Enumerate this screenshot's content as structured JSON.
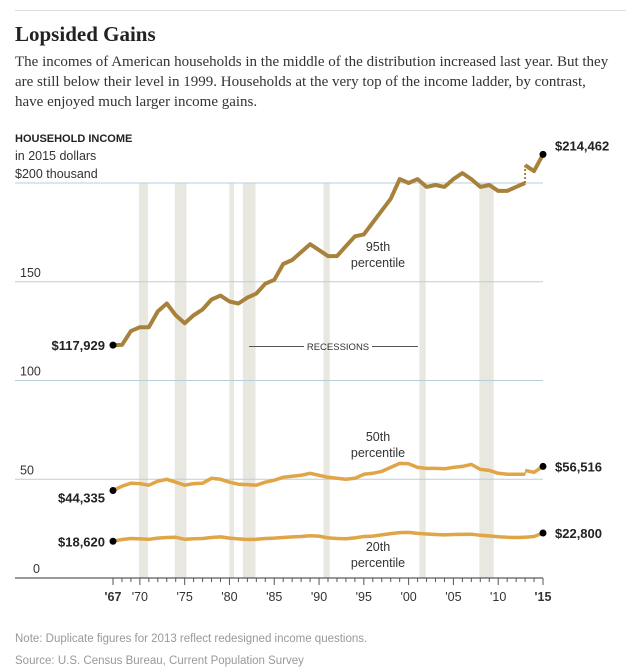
{
  "header": {
    "title": "Lopsided Gains",
    "description": "The incomes of American households in the middle of the distribution increased last year. But they are still below their level in 1999. Households at the very top of the income ladder, by contrast, have enjoyed much larger income gains."
  },
  "footer": {
    "note": "Note: Duplicate figures for 2013 reflect redesigned income questions.",
    "source": "Source: U.S. Census Bureau, Current Population Survey"
  },
  "chart_data": {
    "type": "line",
    "ylabel": "HOUSEHOLD INCOME",
    "ylabel_sub": "in 2015 dollars",
    "ylim": [
      0,
      200
    ],
    "xlim": [
      1967,
      2015
    ],
    "yticks": [
      {
        "v": 200,
        "label": "$200 thousand"
      },
      {
        "v": 150,
        "label": "150"
      },
      {
        "v": 100,
        "label": "100"
      },
      {
        "v": 50,
        "label": "50"
      },
      {
        "v": 0,
        "label": "0"
      }
    ],
    "xticks": [
      {
        "v": 1967,
        "label": "'67",
        "bold": true
      },
      {
        "v": 1970,
        "label": "'70"
      },
      {
        "v": 1975,
        "label": "'75"
      },
      {
        "v": 1980,
        "label": "'80"
      },
      {
        "v": 1985,
        "label": "'85"
      },
      {
        "v": 1990,
        "label": "'90"
      },
      {
        "v": 1995,
        "label": "'95"
      },
      {
        "v": 2000,
        "label": "'00"
      },
      {
        "v": 2005,
        "label": "'05"
      },
      {
        "v": 2010,
        "label": "'10"
      },
      {
        "v": 2015,
        "label": "'15",
        "bold": true
      }
    ],
    "grid": true,
    "recessions_label": "RECESSIONS",
    "recessions": [
      [
        1969.9,
        1970.9
      ],
      [
        1973.9,
        1975.2
      ],
      [
        1980.0,
        1980.5
      ],
      [
        1981.5,
        1982.9
      ],
      [
        1990.5,
        1991.2
      ],
      [
        2001.2,
        2001.9
      ],
      [
        2007.9,
        2009.5
      ]
    ],
    "x": [
      1967,
      1968,
      1969,
      1970,
      1971,
      1972,
      1973,
      1974,
      1975,
      1976,
      1977,
      1978,
      1979,
      1980,
      1981,
      1982,
      1983,
      1984,
      1985,
      1986,
      1987,
      1988,
      1989,
      1990,
      1991,
      1992,
      1993,
      1994,
      1995,
      1996,
      1997,
      1998,
      1999,
      2000,
      2001,
      2002,
      2003,
      2004,
      2005,
      2006,
      2007,
      2008,
      2009,
      2010,
      2011,
      2012,
      2013,
      2013,
      2014,
      2015
    ],
    "series": [
      {
        "name": "95th percentile",
        "color": "#a8823a",
        "start_label": "$117,929",
        "end_label": "$214,462",
        "values": [
          117.9,
          118,
          125,
          127,
          127,
          135,
          139,
          133,
          129,
          133,
          136,
          141,
          143,
          140,
          139,
          142,
          144,
          149,
          151,
          159,
          161,
          165,
          169,
          166,
          163,
          163,
          168,
          173,
          174,
          180,
          186,
          192,
          202,
          200,
          202,
          198,
          199,
          198,
          202,
          205,
          202,
          198,
          199,
          196,
          196,
          198,
          200,
          209,
          206,
          214.5
        ]
      },
      {
        "name": "50th percentile",
        "color": "#e0a547",
        "start_label": "$44,335",
        "end_label": "$56,516",
        "values": [
          44.3,
          46.5,
          48,
          47.8,
          47,
          49,
          50,
          48.5,
          47,
          47.8,
          48,
          50.5,
          50,
          48.5,
          47.5,
          47.3,
          47,
          48.5,
          49.5,
          51,
          51.5,
          52,
          53,
          52,
          51,
          50.5,
          50,
          50.5,
          52.5,
          53,
          54,
          56,
          58,
          57.8,
          56,
          55.5,
          55.5,
          55.3,
          56,
          56.5,
          57.5,
          55,
          54.5,
          53,
          52.5,
          52.5,
          52.5,
          54.5,
          53.5,
          56.5
        ]
      },
      {
        "name": "20th percentile",
        "color": "#e0a547",
        "start_label": "$18,620",
        "end_label": "$22,800",
        "values": [
          18.6,
          19.5,
          20,
          19.8,
          19.6,
          20.2,
          20.5,
          20.6,
          19.6,
          19.9,
          20,
          20.5,
          20.8,
          20.2,
          19.8,
          19.5,
          19.6,
          20,
          20.2,
          20.5,
          20.8,
          21,
          21.4,
          21.2,
          20.3,
          20,
          19.9,
          20.3,
          21,
          21.2,
          21.8,
          22.5,
          23,
          23.1,
          22.6,
          22.3,
          22,
          21.8,
          22,
          22.1,
          22.2,
          21.6,
          21.3,
          20.9,
          20.6,
          20.5,
          20.6,
          20.6,
          21,
          22.8
        ]
      }
    ]
  }
}
